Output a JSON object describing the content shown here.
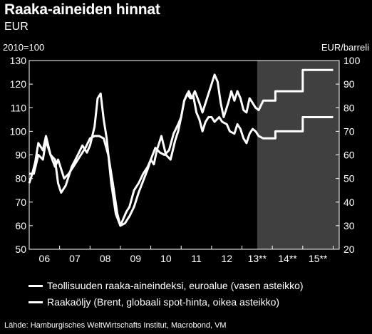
{
  "header": {
    "title": "Raaka-aineiden hinnat",
    "subtitle": "EUR"
  },
  "chart_data": {
    "type": "line",
    "left_axis_label": "2010=100",
    "right_axis_label": "EUR/barreli",
    "ylim_left": [
      50,
      130
    ],
    "ylim_right": [
      20,
      100
    ],
    "left_ticks": [
      "50",
      "60",
      "70",
      "80",
      "90",
      "100",
      "110",
      "120",
      "130"
    ],
    "right_ticks": [
      "20",
      "30",
      "40",
      "50",
      "60",
      "70",
      "80",
      "90",
      "100"
    ],
    "xlim": [
      2006,
      2016.2
    ],
    "x_ticks": [
      {
        "label": "06",
        "x": 2006.5
      },
      {
        "label": "07",
        "x": 2007.5
      },
      {
        "label": "08",
        "x": 2008.5
      },
      {
        "label": "09",
        "x": 2009.5
      },
      {
        "label": "10",
        "x": 2010.5
      },
      {
        "label": "11",
        "x": 2011.5
      },
      {
        "label": "12",
        "x": 2012.5
      },
      {
        "label": "13**",
        "x": 2013.5
      },
      {
        "label": "14**",
        "x": 2014.5
      },
      {
        "label": "15**",
        "x": 2015.5
      }
    ],
    "forecast_start": 2013.5,
    "forecast_color": "#404040",
    "line_color": "#ffffff",
    "grid": false,
    "series": [
      {
        "name": "Teollisuuden raaka-aineindeksi, euroalue (vasen asteikko)",
        "axis": "left",
        "points": [
          [
            2006.0,
            82
          ],
          [
            2006.15,
            82
          ],
          [
            2006.3,
            90
          ],
          [
            2006.45,
            88
          ],
          [
            2006.55,
            96
          ],
          [
            2006.7,
            90
          ],
          [
            2006.85,
            85
          ],
          [
            2006.95,
            88
          ],
          [
            2007.05,
            84
          ],
          [
            2007.15,
            80
          ],
          [
            2007.3,
            82
          ],
          [
            2007.5,
            86
          ],
          [
            2007.7,
            90
          ],
          [
            2007.85,
            93
          ],
          [
            2008.0,
            97
          ],
          [
            2008.15,
            98
          ],
          [
            2008.3,
            98
          ],
          [
            2008.45,
            97
          ],
          [
            2008.6,
            90
          ],
          [
            2008.75,
            78
          ],
          [
            2008.9,
            65
          ],
          [
            2009.0,
            60
          ],
          [
            2009.15,
            61
          ],
          [
            2009.3,
            64
          ],
          [
            2009.45,
            68
          ],
          [
            2009.6,
            74
          ],
          [
            2009.75,
            79
          ],
          [
            2009.9,
            84
          ],
          [
            2010.0,
            88
          ],
          [
            2010.15,
            93
          ],
          [
            2010.3,
            91
          ],
          [
            2010.45,
            90
          ],
          [
            2010.6,
            92
          ],
          [
            2010.75,
            99
          ],
          [
            2010.9,
            103
          ],
          [
            2011.0,
            106
          ],
          [
            2011.1,
            113
          ],
          [
            2011.2,
            116
          ],
          [
            2011.3,
            114
          ],
          [
            2011.4,
            115
          ],
          [
            2011.5,
            108
          ],
          [
            2011.6,
            105
          ],
          [
            2011.7,
            100
          ],
          [
            2011.8,
            104
          ],
          [
            2011.9,
            106
          ],
          [
            2012.0,
            106
          ],
          [
            2012.1,
            104
          ],
          [
            2012.25,
            106
          ],
          [
            2012.35,
            104
          ],
          [
            2012.5,
            103
          ],
          [
            2012.6,
            100
          ],
          [
            2012.75,
            99
          ],
          [
            2012.85,
            103
          ],
          [
            2012.95,
            101
          ],
          [
            2013.05,
            97
          ],
          [
            2013.15,
            95
          ],
          [
            2013.25,
            99
          ],
          [
            2013.35,
            101
          ],
          [
            2013.45,
            100
          ],
          [
            2013.55,
            98
          ],
          [
            2013.7,
            97
          ],
          [
            2013.9,
            97
          ]
        ],
        "forecast": [
          [
            2013.9,
            97
          ],
          [
            2014.0,
            97
          ],
          [
            2014.1,
            97
          ],
          [
            2014.1,
            100
          ],
          [
            2015.0,
            100
          ],
          [
            2015.0,
            106
          ],
          [
            2016.0,
            106
          ]
        ]
      },
      {
        "name": "Raakaöljy (Brent, globaali spot-hinta, oikea asteikko)",
        "axis": "right",
        "points": [
          [
            2006.0,
            48
          ],
          [
            2006.1,
            52
          ],
          [
            2006.2,
            57
          ],
          [
            2006.3,
            65
          ],
          [
            2006.45,
            62
          ],
          [
            2006.55,
            68
          ],
          [
            2006.7,
            60
          ],
          [
            2006.85,
            58
          ],
          [
            2006.95,
            48
          ],
          [
            2007.05,
            44
          ],
          [
            2007.2,
            47
          ],
          [
            2007.4,
            55
          ],
          [
            2007.6,
            60
          ],
          [
            2007.75,
            64
          ],
          [
            2007.9,
            61
          ],
          [
            2008.0,
            64
          ],
          [
            2008.15,
            72
          ],
          [
            2008.25,
            84
          ],
          [
            2008.35,
            86
          ],
          [
            2008.45,
            75
          ],
          [
            2008.55,
            67
          ],
          [
            2008.7,
            48
          ],
          [
            2008.85,
            35
          ],
          [
            2009.0,
            30
          ],
          [
            2009.1,
            33
          ],
          [
            2009.2,
            36
          ],
          [
            2009.3,
            38
          ],
          [
            2009.45,
            45
          ],
          [
            2009.6,
            48
          ],
          [
            2009.75,
            52
          ],
          [
            2009.9,
            55
          ],
          [
            2010.0,
            58
          ],
          [
            2010.1,
            56
          ],
          [
            2010.2,
            62
          ],
          [
            2010.35,
            68
          ],
          [
            2010.5,
            60
          ],
          [
            2010.65,
            58
          ],
          [
            2010.8,
            66
          ],
          [
            2010.9,
            70
          ],
          [
            2011.0,
            76
          ],
          [
            2011.1,
            83
          ],
          [
            2011.25,
            87
          ],
          [
            2011.35,
            84
          ],
          [
            2011.45,
            87
          ],
          [
            2011.6,
            82
          ],
          [
            2011.7,
            78
          ],
          [
            2011.8,
            82
          ],
          [
            2011.9,
            86
          ],
          [
            2012.0,
            90
          ],
          [
            2012.1,
            94
          ],
          [
            2012.2,
            91
          ],
          [
            2012.3,
            82
          ],
          [
            2012.4,
            76
          ],
          [
            2012.55,
            82
          ],
          [
            2012.65,
            87
          ],
          [
            2012.75,
            83
          ],
          [
            2012.85,
            87
          ],
          [
            2012.95,
            84
          ],
          [
            2013.05,
            79
          ],
          [
            2013.15,
            78
          ],
          [
            2013.25,
            84
          ],
          [
            2013.35,
            82
          ],
          [
            2013.45,
            80
          ],
          [
            2013.55,
            79
          ],
          [
            2013.7,
            83
          ],
          [
            2013.9,
            83
          ]
        ],
        "forecast": [
          [
            2013.9,
            83
          ],
          [
            2014.0,
            83
          ],
          [
            2014.1,
            83
          ],
          [
            2014.1,
            87
          ],
          [
            2015.0,
            87
          ],
          [
            2015.0,
            96
          ],
          [
            2016.0,
            96
          ]
        ]
      }
    ]
  },
  "legend": [
    "Teollisuuden raaka-aineindeksi, euroalue (vasen asteikko)",
    "Raakaöljy (Brent, globaali spot-hinta, oikea asteikko)"
  ],
  "source": "Lähde: Hamburgisches WeltWirtschafts Institut, Macrobond, VM"
}
